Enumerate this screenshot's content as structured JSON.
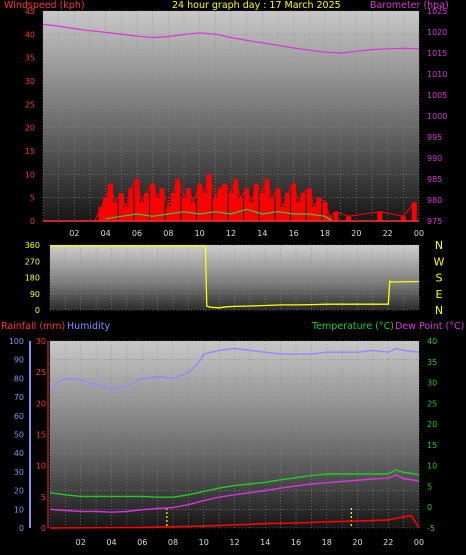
{
  "header": {
    "left": "Windspeed (kph)",
    "center": "24 hour graph day : 17 March 2025",
    "right": "Barometer (hpa)"
  },
  "bottom_header": {
    "rain": "Rainfall (mm)",
    "hum": "Humidity",
    "temp": "Temperature (°C)",
    "dew": "Dew Point (°C)"
  },
  "colors": {
    "wind": "#ff0000",
    "gust_area": "#ff0000",
    "wind_avg": "#33cc33",
    "baro": "#dd33dd",
    "direction": "#ffff00",
    "rain": "#ff0000",
    "humidity": "#8c8cff",
    "temperature": "#22cc22",
    "dewpoint": "#dd33dd",
    "rain_marks": "#ffff00"
  },
  "chart_data": [
    {
      "type": "line",
      "title": "24 hour graph day : 17 March 2025",
      "x_ticks": [
        "02",
        "04",
        "06",
        "08",
        "10",
        "12",
        "14",
        "16",
        "18",
        "20",
        "22",
        "00"
      ],
      "x_range": [
        0,
        24
      ],
      "y_left": {
        "label": "Windspeed (kph)",
        "range": [
          0,
          45
        ],
        "ticks": [
          "45",
          "40",
          "35",
          "30",
          "25",
          "20",
          "15",
          "10",
          "5",
          "0"
        ]
      },
      "y_right": {
        "label": "Barometer (hpa)",
        "range": [
          975,
          1025
        ],
        "ticks": [
          "1025",
          "1020",
          "1015",
          "1010",
          "1005",
          "1000",
          "995",
          "990",
          "985",
          "980",
          "975"
        ]
      },
      "series": [
        {
          "name": "Barometer (hpa)",
          "axis": "right",
          "x": [
            0,
            1,
            2,
            3,
            4,
            5,
            6,
            7,
            8,
            9,
            10,
            11,
            12,
            13,
            14,
            15,
            16,
            17,
            18,
            19,
            20,
            21,
            22,
            23,
            24
          ],
          "values": [
            1021.8,
            1021.4,
            1020.8,
            1020.3,
            1019.9,
            1019.5,
            1019.0,
            1018.7,
            1018.9,
            1019.4,
            1019.8,
            1019.5,
            1018.7,
            1018.0,
            1017.4,
            1016.8,
            1016.2,
            1015.7,
            1015.2,
            1015.0,
            1015.4,
            1015.8,
            1016.0,
            1016.1,
            1016.0
          ]
        }
      ],
      "wind_speed_kph": {
        "x": [
          3.3,
          3.7,
          4.0,
          4.3,
          4.6,
          5.0,
          5.3,
          5.6,
          6.0,
          6.3,
          6.6,
          7.0,
          7.3,
          7.6,
          8.0,
          8.3,
          8.6,
          9.0,
          9.3,
          9.6,
          10.0,
          10.3,
          10.6,
          11.0,
          11.3,
          11.6,
          12.0,
          12.3,
          12.6,
          13.0,
          13.3,
          13.6,
          14.0,
          14.3,
          14.6,
          15.0,
          15.3,
          15.6,
          16.0,
          16.3,
          16.6,
          17.0,
          17.3,
          17.6,
          18.0,
          18.3,
          18.7,
          19.5,
          21.5,
          23.0,
          23.7
        ],
        "values": [
          0,
          3,
          5,
          8,
          4,
          6,
          3,
          7,
          9,
          4,
          6,
          8,
          5,
          7,
          3,
          6,
          9,
          5,
          7,
          4,
          8,
          6,
          10,
          5,
          7,
          8,
          6,
          9,
          5,
          7,
          4,
          8,
          6,
          9,
          5,
          7,
          3,
          6,
          8,
          4,
          6,
          7,
          3,
          5,
          4,
          1,
          2,
          1,
          2,
          1,
          4
        ]
      },
      "wind_avg_kph": {
        "x": [
          4,
          5,
          6,
          7,
          8,
          9,
          10,
          11,
          12,
          13,
          14,
          15,
          16,
          17,
          18,
          18.5
        ],
        "values": [
          0.5,
          1,
          1.5,
          1,
          1.5,
          2,
          1.5,
          2,
          1.5,
          2.5,
          1.5,
          2,
          1.5,
          1.5,
          1,
          0
        ]
      }
    },
    {
      "type": "line",
      "y_left_ticks": [
        "360",
        "270",
        "180",
        "90",
        "0"
      ],
      "y_left_range": [
        0,
        360
      ],
      "y_right_ticks": [
        "N",
        "W",
        "S",
        "E",
        "N"
      ],
      "x_range": [
        0,
        24
      ],
      "series": [
        {
          "name": "Wind direction",
          "x": [
            0,
            10.1,
            10.2,
            10.5,
            11.0,
            11.5,
            12.0,
            13.0,
            14.0,
            15.0,
            16.0,
            17.0,
            18.0,
            19.0,
            20.0,
            21.0,
            22.0,
            22.1,
            22.2,
            24.0
          ],
          "values": [
            355,
            355,
            20,
            15,
            12,
            18,
            20,
            22,
            25,
            28,
            28,
            30,
            32,
            32,
            32,
            32,
            32,
            160,
            155,
            158
          ]
        }
      ]
    },
    {
      "type": "line",
      "x_ticks": [
        "02",
        "04",
        "06",
        "08",
        "10",
        "12",
        "14",
        "16",
        "18",
        "20",
        "22",
        "00"
      ],
      "x_range": [
        0,
        24
      ],
      "y_left_outer": {
        "label": "Humidity",
        "range": [
          0,
          100
        ],
        "ticks": [
          "100",
          "90",
          "80",
          "70",
          "60",
          "50",
          "40",
          "30",
          "20",
          "10",
          "0"
        ]
      },
      "y_left_inner": {
        "label": "Rainfall (mm)",
        "range": [
          0,
          30
        ],
        "ticks": [
          "30",
          "25",
          "20",
          "15",
          "10",
          "5",
          "0"
        ]
      },
      "y_right": {
        "label": "Temperature (°C)",
        "range": [
          -5,
          40
        ],
        "ticks": [
          "40",
          "35",
          "30",
          "25",
          "20",
          "15",
          "10",
          "5",
          "0",
          "-5"
        ]
      },
      "series": [
        {
          "name": "Humidity",
          "axis": "left_outer",
          "x": [
            0,
            0.5,
            1,
            2,
            3,
            4,
            5,
            6,
            7,
            8,
            9,
            9.5,
            9.8,
            10,
            11,
            12,
            13,
            14,
            15,
            16,
            17,
            18,
            19,
            20,
            21,
            22,
            22.5,
            23,
            24
          ],
          "values": [
            73,
            78,
            80,
            79,
            77,
            74,
            76,
            80,
            81,
            80,
            83,
            87,
            90,
            93,
            95,
            96,
            95,
            94,
            93,
            93,
            93,
            94,
            94,
            94,
            95,
            94,
            96,
            95,
            94
          ]
        },
        {
          "name": "Temperature (°C)",
          "axis": "right",
          "x": [
            0,
            1,
            2,
            3,
            4,
            5,
            6,
            7,
            8,
            9,
            10,
            11,
            12,
            13,
            14,
            15,
            16,
            17,
            18,
            19,
            20,
            21,
            22,
            22.5,
            23,
            24
          ],
          "values": [
            3.5,
            3.0,
            2.6,
            2.6,
            2.6,
            2.6,
            2.6,
            2.4,
            2.4,
            3.0,
            3.8,
            4.6,
            5.2,
            5.6,
            6.0,
            6.6,
            7.1,
            7.6,
            8.0,
            8.0,
            8.0,
            8.0,
            8.0,
            9.0,
            8.4,
            7.8
          ]
        },
        {
          "name": "Dew Point (°C)",
          "axis": "right",
          "x": [
            0,
            1,
            2,
            3,
            4,
            5,
            6,
            7,
            8,
            9,
            10,
            11,
            12,
            13,
            14,
            15,
            16,
            17,
            18,
            19,
            20,
            21,
            22,
            22.5,
            23,
            24
          ],
          "values": [
            -0.5,
            -0.8,
            -1.0,
            -1.0,
            -1.2,
            -1.0,
            -0.6,
            -0.3,
            -0.1,
            0.6,
            1.6,
            2.4,
            3.0,
            3.5,
            4.0,
            4.6,
            5.1,
            5.6,
            5.9,
            6.2,
            6.5,
            6.8,
            7.0,
            7.8,
            6.9,
            6.3
          ]
        },
        {
          "name": "Rainfall (mm)",
          "axis": "left_inner",
          "x": [
            0,
            6,
            10,
            12,
            14,
            16,
            18,
            20,
            22,
            23.5,
            24
          ],
          "values": [
            0,
            0.1,
            0.3,
            0.5,
            0.7,
            0.8,
            1.0,
            1.1,
            1.3,
            2.0,
            0
          ]
        }
      ],
      "rain_markers_x": [
        7.6,
        19.6
      ]
    }
  ]
}
